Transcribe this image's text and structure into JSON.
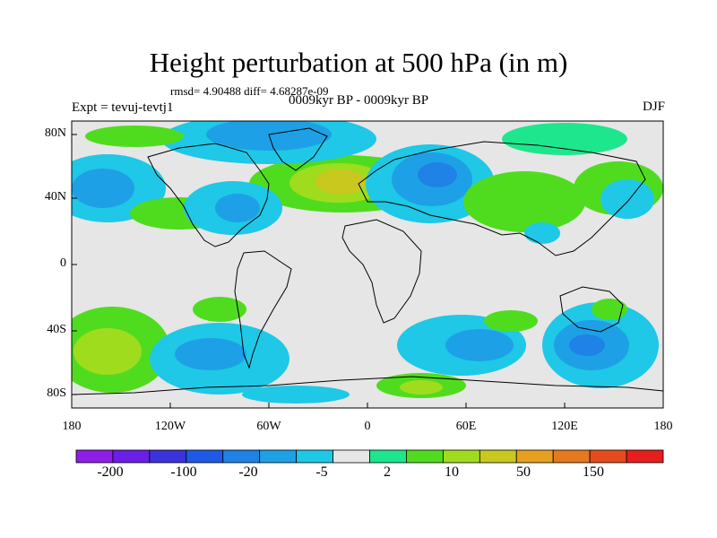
{
  "title": "Height perturbation at 500 hPa (in m)",
  "rmsd_line": "rmsd= 4.90488 diff= 4.68287e-09",
  "period_line": "0009kyr BP - 0009kyr BP",
  "experiment": "Expt = tevuj-tevtj1",
  "season": "DJF",
  "y_axis_labels": [
    "80N",
    "40N",
    "0",
    "40S",
    "80S"
  ],
  "x_axis_labels": [
    "180",
    "120W",
    "60W",
    "0",
    "60E",
    "120E",
    "180"
  ],
  "colorbar": {
    "colors": [
      "#8c1ee6",
      "#6a1ee6",
      "#3c32dc",
      "#1e5ae6",
      "#1e82e6",
      "#1ea0e6",
      "#1ec8e6",
      "#e6e6e6",
      "#1ee68c",
      "#50dc1e",
      "#a0dc1e",
      "#c8c81e",
      "#e6a01e",
      "#e6781e",
      "#e64b1e",
      "#e61e1e"
    ],
    "labels": [
      "-200",
      "-100",
      "-20",
      "-5",
      "2",
      "10",
      "50",
      "150"
    ]
  },
  "chart_data": {
    "type": "heatmap",
    "title": "Height perturbation at 500 hPa (in m)",
    "x_range_deg": [
      -180,
      180
    ],
    "y_range_deg": [
      -90,
      90
    ],
    "anomaly_regions": [
      {
        "name": "north-atlantic-high",
        "lon": -15,
        "lat": 48,
        "value": 20
      },
      {
        "name": "north-pacific-low",
        "lon": -160,
        "lat": 40,
        "value": -5
      },
      {
        "name": "north-america-low",
        "lon": -95,
        "lat": 52,
        "value": -5
      },
      {
        "name": "arctic-low",
        "lon": -60,
        "lat": 78,
        "value": -5
      },
      {
        "name": "eurasia-low",
        "lon": 40,
        "lat": 55,
        "value": -20
      },
      {
        "name": "central-asia-high",
        "lon": 80,
        "lat": 45,
        "value": 10
      },
      {
        "name": "siberia-high",
        "lon": 100,
        "lat": 75,
        "value": 10
      },
      {
        "name": "south-pacific-high",
        "lon": -160,
        "lat": -45,
        "value": 15
      },
      {
        "name": "south-america-low",
        "lon": -95,
        "lat": -50,
        "value": -10
      },
      {
        "name": "south-atlantic-low",
        "lon": 45,
        "lat": -45,
        "value": -10
      },
      {
        "name": "australia-south-low",
        "lon": 150,
        "lat": -45,
        "value": -20
      },
      {
        "name": "antarctic-high",
        "lon": 30,
        "lat": -80,
        "value": 10
      }
    ]
  }
}
